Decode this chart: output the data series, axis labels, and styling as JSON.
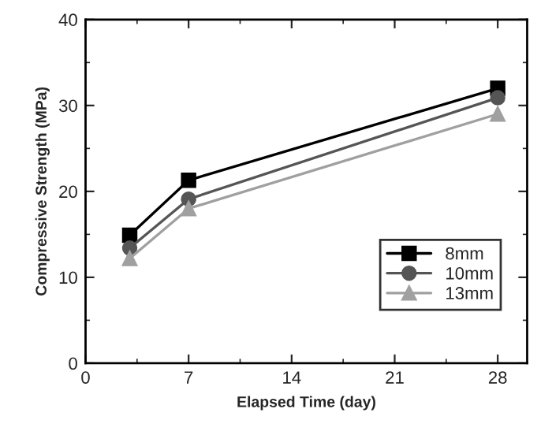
{
  "chart_data": {
    "type": "line",
    "xlabel": "Elapsed Time (day)",
    "ylabel": "Compressive Strength (MPa)",
    "x": [
      3,
      7,
      28
    ],
    "series": [
      {
        "name": "8mm",
        "color": "#000000",
        "marker": "square",
        "values": [
          14.9,
          21.3,
          32.0
        ]
      },
      {
        "name": "10mm",
        "color": "#555555",
        "marker": "circle",
        "values": [
          13.4,
          19.1,
          30.9
        ]
      },
      {
        "name": "13mm",
        "color": "#a0a0a0",
        "marker": "triangle",
        "values": [
          12.2,
          18.0,
          29.0
        ]
      }
    ],
    "xlim": [
      0,
      30
    ],
    "xticks": [
      0,
      7,
      14,
      21,
      28
    ],
    "ylim": [
      0,
      40
    ],
    "yticks": [
      0,
      10,
      20,
      30,
      40
    ],
    "grid": false,
    "legend": "bottom right",
    "line_style": "solid"
  }
}
